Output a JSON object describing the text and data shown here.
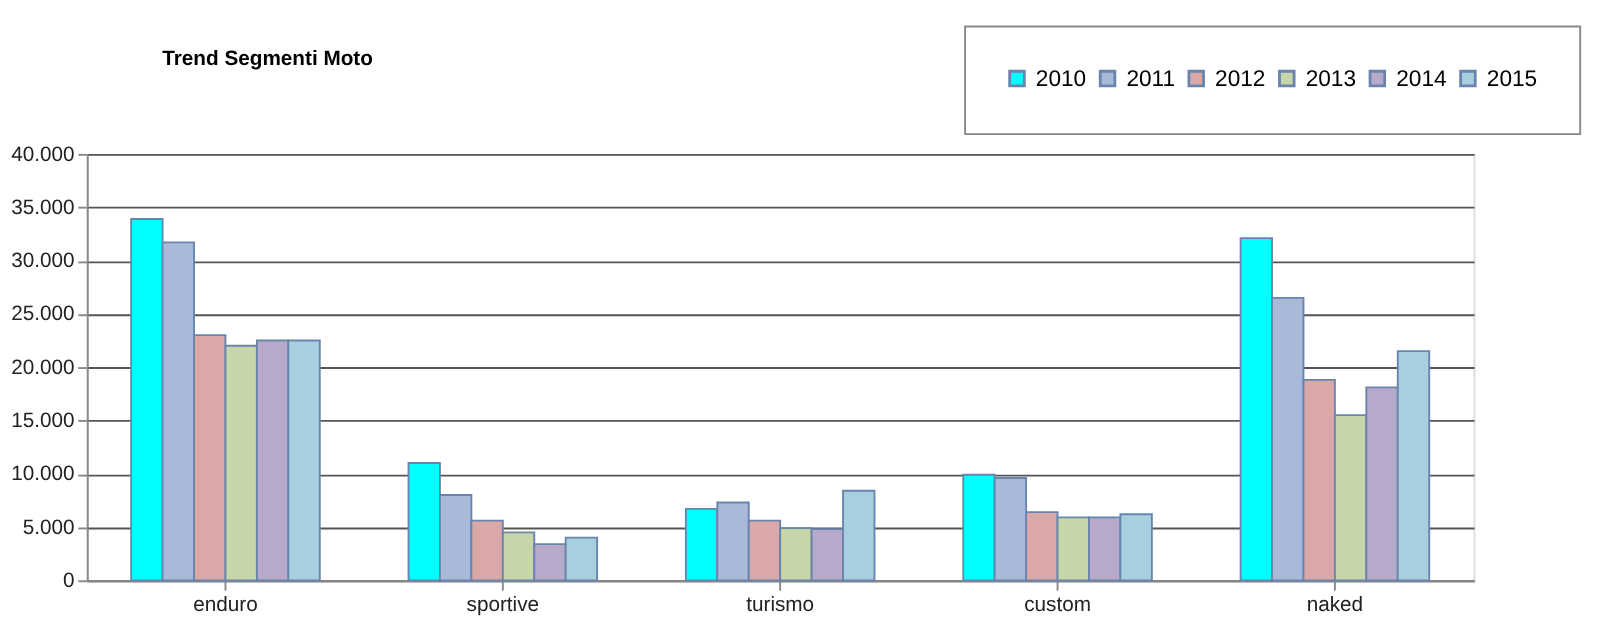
{
  "chart_data": {
    "type": "bar",
    "title": "Trend Segmenti Moto",
    "categories": [
      "enduro",
      "sportive",
      "turismo",
      "custom",
      "naked"
    ],
    "series": [
      {
        "name": "2010",
        "color": "#00ffff",
        "values": [
          33900,
          11000,
          6700,
          9900,
          32100
        ]
      },
      {
        "name": "2011",
        "color": "#a9b9d9",
        "values": [
          31700,
          8000,
          7300,
          9600,
          26500
        ]
      },
      {
        "name": "2012",
        "color": "#dba8a8",
        "values": [
          23000,
          5600,
          5600,
          6400,
          18800
        ]
      },
      {
        "name": "2013",
        "color": "#c6d6a9",
        "values": [
          22000,
          4500,
          4900,
          5900,
          15500
        ]
      },
      {
        "name": "2014",
        "color": "#b7a9c9",
        "values": [
          22500,
          3400,
          4800,
          5900,
          18100
        ]
      },
      {
        "name": "2015",
        "color": "#a8cfdf",
        "values": [
          22500,
          4000,
          8400,
          6200,
          21500
        ]
      }
    ],
    "ylim": [
      0,
      40000
    ],
    "yticks": [
      {
        "value": 0,
        "label": "0"
      },
      {
        "value": 5000,
        "label": "5.000"
      },
      {
        "value": 10000,
        "label": "10.000"
      },
      {
        "value": 15000,
        "label": "15.000"
      },
      {
        "value": 20000,
        "label": "20.000"
      },
      {
        "value": 25000,
        "label": "25.000"
      },
      {
        "value": 30000,
        "label": "30.000"
      },
      {
        "value": 35000,
        "label": "35.000"
      },
      {
        "value": 40000,
        "label": "40.000"
      }
    ],
    "grid": "y",
    "legend": "top right"
  }
}
